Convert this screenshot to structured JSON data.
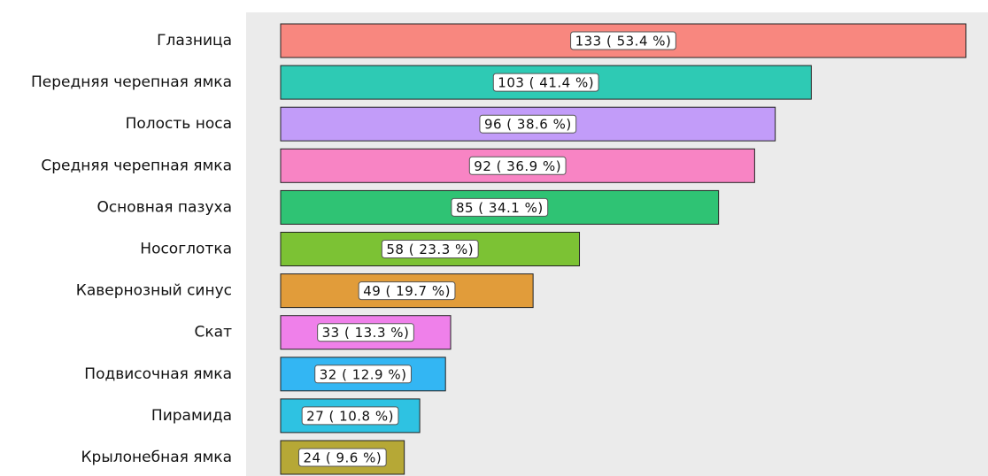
{
  "chart_data": {
    "type": "barh",
    "categories": [
      "Глазница",
      "Передняя черепная ямка",
      "Полость носа",
      "Средняя черепная ямка",
      "Основная пазуха",
      "Носоглотка",
      "Кавернозный синус",
      "Скат",
      "Подвисочная ямка",
      "Пирамида",
      "Крылонебная ямка"
    ],
    "values": [
      133,
      103,
      96,
      92,
      85,
      58,
      49,
      33,
      32,
      27,
      24
    ],
    "value_labels": [
      "133 ( 53.4 %)",
      "103 ( 41.4 %)",
      "96 ( 38.6 %)",
      "92 ( 36.9 %)",
      "85 ( 34.1 %)",
      "58 ( 23.3 %)",
      "49 ( 19.7 %)",
      "33 ( 13.3 %)",
      "32 ( 12.9 %)",
      "27 ( 10.8 %)",
      "24 ( 9.6 %)"
    ],
    "colors": [
      "#f8877f",
      "#2ecab4",
      "#c29cf9",
      "#f884c4",
      "#2fc374",
      "#7cc234",
      "#e19c3a",
      "#ef80ea",
      "#33b6f3",
      "#2ec2e2",
      "#b6a836"
    ],
    "xlim": [
      -6.7,
      137.3
    ]
  }
}
